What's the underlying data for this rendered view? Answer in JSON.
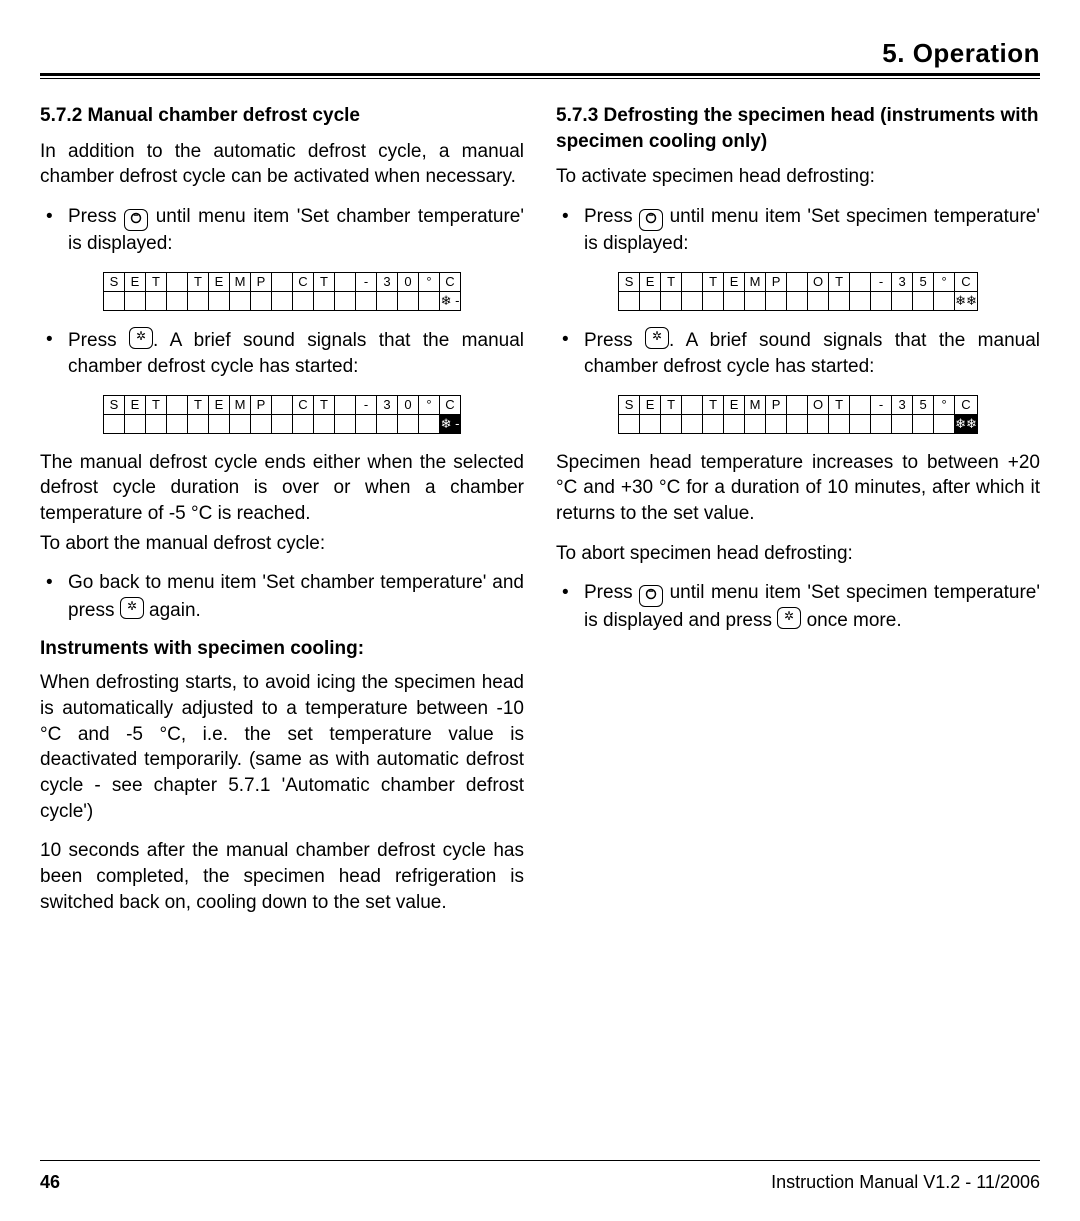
{
  "header": {
    "chapter": "5.   Operation"
  },
  "left": {
    "sec1_num": "5.7.2",
    "sec1_title": "Manual chamber defrost cycle",
    "p1": "In addition to the automatic defrost cycle, a manual chamber defrost cycle can be activated when necessary.",
    "b1a": "Press",
    "b1b": "until menu item 'Set chamber temperature' is displayed:",
    "b2a": "Press",
    "b2b": ". A brief sound signals that the manual chamber defrost cycle has started:",
    "p2": "The manual defrost cycle ends either when the selected defrost cycle duration is over or when a chamber temperature of -5 °C is reached.",
    "p3": "To abort the manual defrost cycle:",
    "b3a": "Go back to menu item  'Set chamber temperature' and press",
    "b3b": "again.",
    "sub": "Instruments with specimen cooling:",
    "p4": "When defrosting starts, to avoid icing the specimen head is automatically adjusted to a temperature between -10 °C and -5 °C, i.e. the set temperature value is deactivated temporarily. (same as with automatic defrost cycle - see chapter 5.7.1 'Automatic chamber defrost cycle')",
    "p5": "10 seconds after the manual chamber defrost cycle has been completed, the specimen head refrigeration is switched back on, cooling down to the set value."
  },
  "right": {
    "sec_num": "5.7.3",
    "sec_title": "Defrosting the specimen head (instruments with specimen cooling only)",
    "p1": "To activate specimen head defrosting:",
    "b1a": "Press",
    "b1b": "until menu item 'Set specimen temperature' is displayed:",
    "b2a": "Press",
    "b2b": ". A brief sound signals that the manual chamber defrost cycle has started:",
    "p2": "Specimen head temperature increases to  between +20 °C and +30 °C for a duration of 10 minutes, after which it returns to the set value.",
    "p3": "To abort specimen head defrosting:",
    "b3a": "Press",
    "b3b": "until menu item 'Set specimen temperature' is displayed and press",
    "b3c": "once more."
  },
  "lcd": {
    "left1_row1": [
      "S",
      "E",
      "T",
      "",
      "T",
      "E",
      "M",
      "P",
      "",
      "C",
      "T",
      "",
      "-",
      "3",
      "0",
      "°",
      "C"
    ],
    "left1_row2": [
      "",
      "",
      "",
      "",
      "",
      "",
      "",
      "",
      "",
      "",
      "",
      "",
      "",
      "",
      "",
      "",
      "❄ -"
    ],
    "left1_inv": [],
    "left2_row1": [
      "S",
      "E",
      "T",
      "",
      "T",
      "E",
      "M",
      "P",
      "",
      "C",
      "T",
      "",
      "-",
      "3",
      "0",
      "°",
      "C"
    ],
    "left2_row2": [
      "",
      "",
      "",
      "",
      "",
      "",
      "",
      "",
      "",
      "",
      "",
      "",
      "",
      "",
      "",
      "",
      "❄ -"
    ],
    "left2_inv": [
      16
    ],
    "right1_row1": [
      "S",
      "E",
      "T",
      "",
      "T",
      "E",
      "M",
      "P",
      "",
      "O",
      "T",
      "",
      "-",
      "3",
      "5",
      "°",
      "C"
    ],
    "right1_row2": [
      "",
      "",
      "",
      "",
      "",
      "",
      "",
      "",
      "",
      "",
      "",
      "",
      "",
      "",
      "",
      "",
      "❄❄"
    ],
    "right1_inv": [],
    "right2_row1": [
      "S",
      "E",
      "T",
      "",
      "T",
      "E",
      "M",
      "P",
      "",
      "O",
      "T",
      "",
      "-",
      "3",
      "5",
      "°",
      "C"
    ],
    "right2_row2": [
      "",
      "",
      "",
      "",
      "",
      "",
      "",
      "",
      "",
      "",
      "",
      "",
      "",
      "",
      "",
      "",
      "❄❄"
    ],
    "right2_inv": [
      16
    ]
  },
  "footer": {
    "page": "46",
    "manual": "Instruction Manual V1.2 - 11/2006"
  }
}
